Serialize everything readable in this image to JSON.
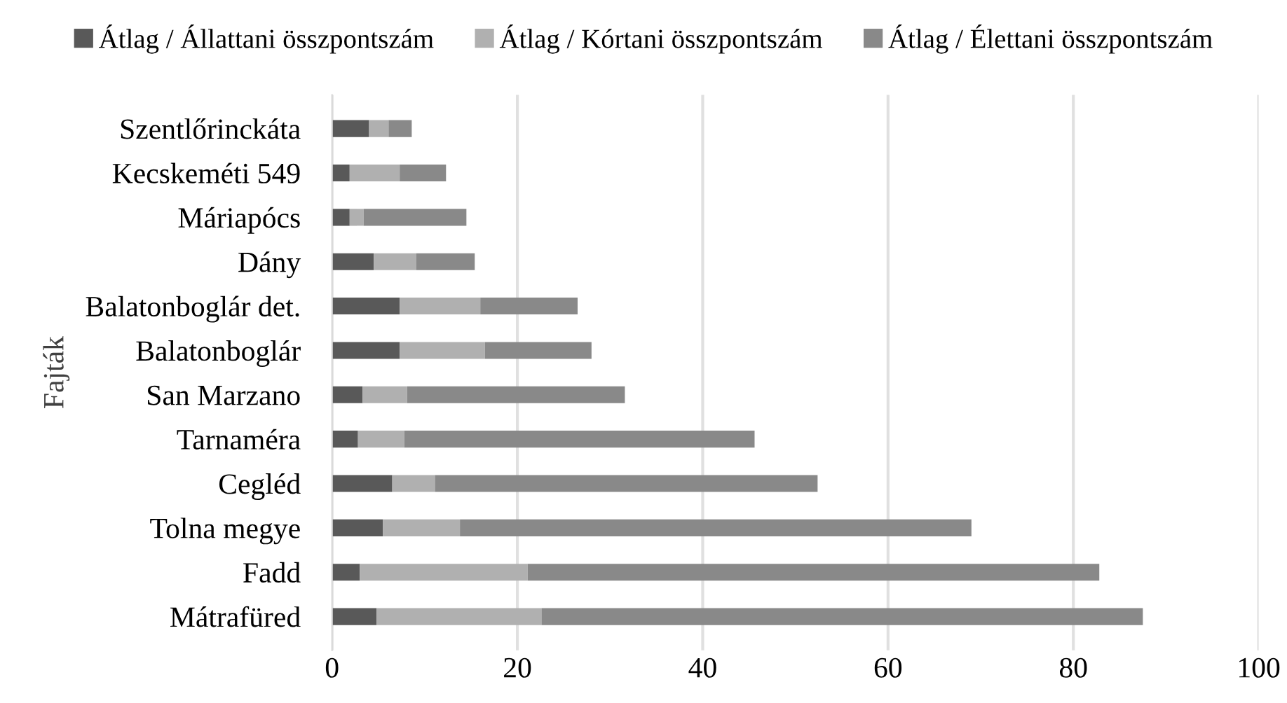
{
  "chart_data": {
    "type": "bar",
    "orientation": "horizontal",
    "stacked": true,
    "ylabel": "Fajták",
    "categories": [
      "Szentlőrinckáta",
      "Kecskeméti 549",
      "Máriapócs",
      "Dány",
      "Balatonboglár det.",
      "Balatonboglár",
      "San Marzano",
      "Tarnaméra",
      "Cegléd",
      "Tolna megye",
      "Fadd",
      "Mátrafüred"
    ],
    "series": [
      {
        "name": "Átlag / Állattani összpontszám",
        "color": "#595959",
        "values": [
          4.0,
          1.9,
          1.9,
          4.5,
          7.3,
          7.3,
          3.3,
          2.8,
          6.5,
          5.5,
          3.0,
          4.8
        ]
      },
      {
        "name": "Átlag / Kórtani összpontszám",
        "color": "#b0b0b0",
        "values": [
          2.1,
          5.4,
          1.5,
          4.6,
          8.7,
          9.2,
          4.8,
          5.0,
          4.6,
          8.3,
          18.1,
          17.8
        ]
      },
      {
        "name": "Átlag / Élettani összpontszám",
        "color": "#898989",
        "values": [
          2.5,
          5.0,
          11.1,
          6.3,
          10.5,
          11.5,
          23.5,
          37.8,
          41.3,
          55.2,
          61.7,
          64.9
        ]
      }
    ],
    "xlim": [
      0,
      100
    ],
    "xticks": [
      0,
      20,
      40,
      60,
      80,
      100
    ],
    "grid": "x",
    "legend": "top"
  }
}
